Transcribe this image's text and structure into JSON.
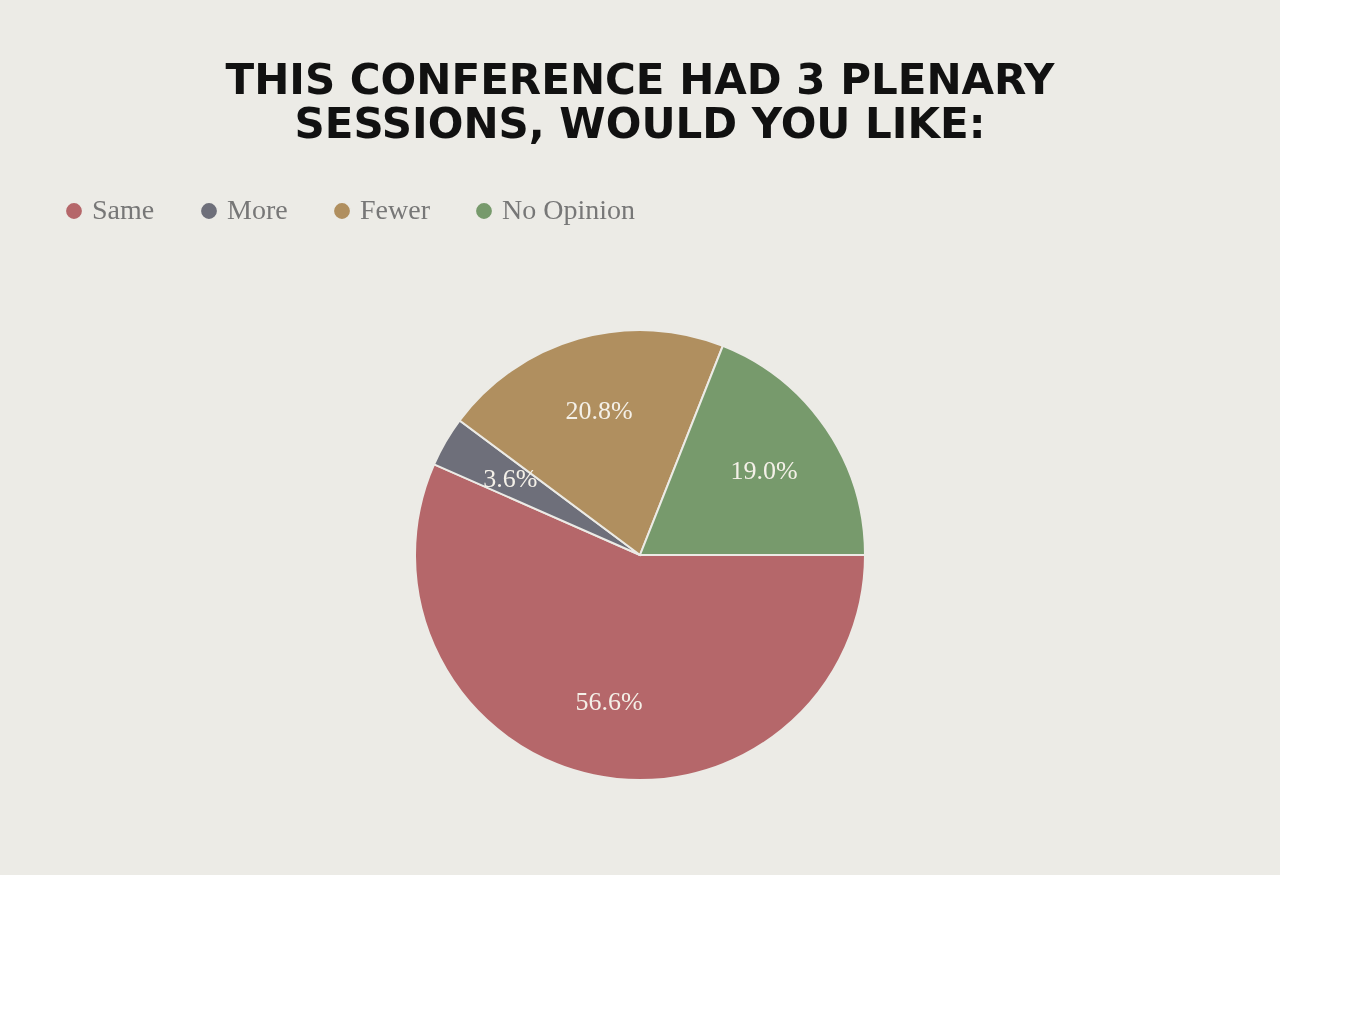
{
  "chart_data": {
    "type": "pie",
    "title": [
      "THIS CONFERENCE HAD 3 PLENARY",
      "SESSIONS, WOULD YOU LIKE:"
    ],
    "categories": [
      "Same",
      "More",
      "Fewer",
      "No Opinion"
    ],
    "values": [
      56.6,
      3.6,
      20.8,
      19.0
    ],
    "value_labels": [
      "56.6%",
      "3.6%",
      "20.8%",
      "19.0%"
    ],
    "colors": [
      "#b5676a",
      "#6e6f7a",
      "#b08f5f",
      "#779a6c"
    ],
    "legend": "top"
  }
}
